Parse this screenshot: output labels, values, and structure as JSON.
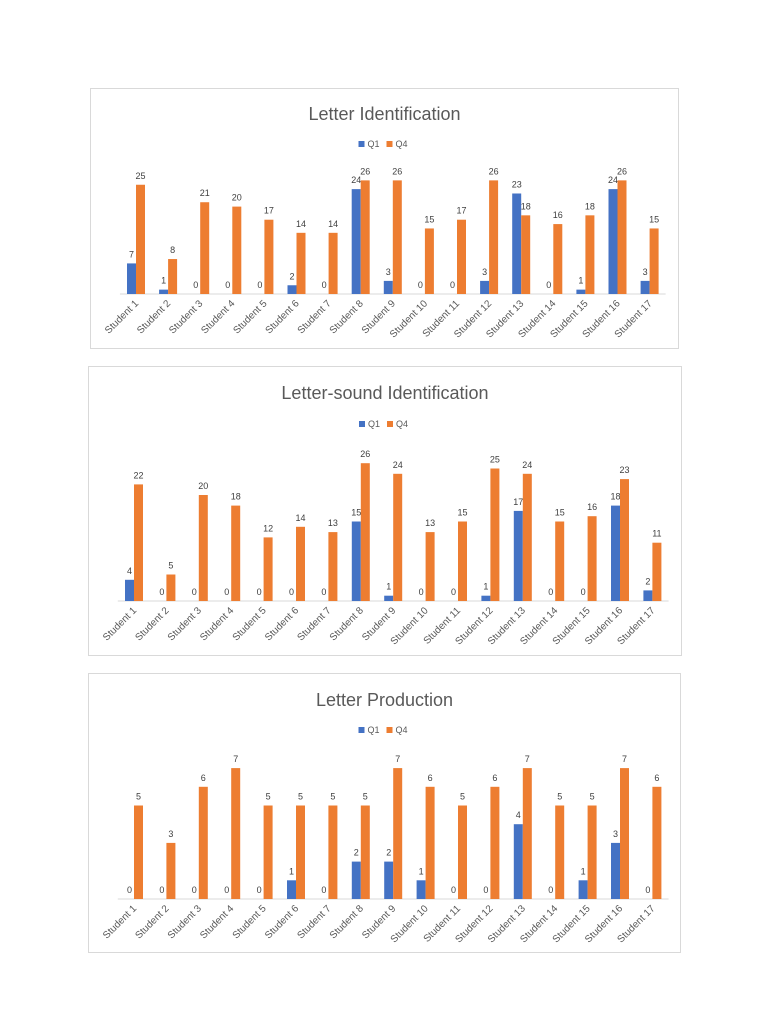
{
  "colors": {
    "Q1": "#4472c4",
    "Q4": "#ed7d31"
  },
  "chart_data": [
    {
      "type": "bar",
      "title": "Letter Identification",
      "categories": [
        "Student 1",
        "Student 2",
        "Student 3",
        "Student 4",
        "Student 5",
        "Student 6",
        "Student 7",
        "Student 8",
        "Student 9",
        "Student 10",
        "Student 11",
        "Student 12",
        "Student 13",
        "Student 14",
        "Student 15",
        "Student 16",
        "Student 17"
      ],
      "series": [
        {
          "name": "Q1",
          "values": [
            7,
            1,
            0,
            0,
            0,
            2,
            0,
            24,
            3,
            0,
            0,
            3,
            23,
            0,
            1,
            24,
            3
          ]
        },
        {
          "name": "Q4",
          "values": [
            25,
            8,
            21,
            20,
            17,
            14,
            14,
            26,
            26,
            15,
            17,
            26,
            18,
            16,
            18,
            26,
            15
          ]
        }
      ],
      "legend": "top",
      "grid": false,
      "data_labels": true
    },
    {
      "type": "bar",
      "title": "Letter-sound Identification",
      "categories": [
        "Student 1",
        "Student 2",
        "Student 3",
        "Student 4",
        "Student 5",
        "Student 6",
        "Student 7",
        "Student 8",
        "Student 9",
        "Student 10",
        "Student 11",
        "Student 12",
        "Student 13",
        "Student 14",
        "Student 15",
        "Student 16",
        "Student 17"
      ],
      "series": [
        {
          "name": "Q1",
          "values": [
            4,
            0,
            0,
            0,
            0,
            0,
            0,
            15,
            1,
            0,
            0,
            1,
            17,
            0,
            0,
            18,
            2
          ]
        },
        {
          "name": "Q4",
          "values": [
            22,
            5,
            20,
            18,
            12,
            14,
            13,
            26,
            24,
            13,
            15,
            25,
            24,
            15,
            16,
            23,
            11
          ]
        }
      ],
      "legend": "top",
      "grid": false,
      "data_labels": true
    },
    {
      "type": "bar",
      "title": "Letter Production",
      "categories": [
        "Student 1",
        "Student 2",
        "Student 3",
        "Student 4",
        "Student 5",
        "Student 6",
        "Student 7",
        "Student 8",
        "Student 9",
        "Student 10",
        "Student 11",
        "Student 12",
        "Student 13",
        "Student 14",
        "Student 15",
        "Student 16",
        "Student 17"
      ],
      "series": [
        {
          "name": "Q1",
          "values": [
            0,
            0,
            0,
            0,
            0,
            1,
            0,
            2,
            2,
            1,
            0,
            0,
            4,
            0,
            1,
            3,
            0
          ]
        },
        {
          "name": "Q4",
          "values": [
            5,
            3,
            6,
            7,
            5,
            5,
            5,
            5,
            7,
            6,
            5,
            6,
            7,
            5,
            5,
            7,
            6
          ]
        }
      ],
      "legend": "top",
      "grid": false,
      "data_labels": true
    }
  ]
}
